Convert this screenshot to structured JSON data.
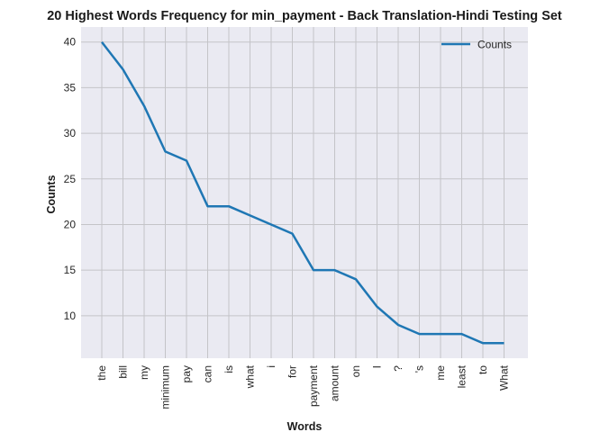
{
  "chart_data": {
    "type": "line",
    "title": "20 Highest Words Frequency for min_payment - Back Translation-Hindi Testing Set",
    "xlabel": "Words",
    "ylabel": "Counts",
    "categories": [
      "the",
      "bill",
      "my",
      "minimum",
      "pay",
      "can",
      "is",
      "what",
      "i",
      "for",
      "payment",
      "amount",
      "on",
      "I",
      "?",
      "'s",
      "me",
      "least",
      "to",
      "What"
    ],
    "series": [
      {
        "name": "Counts",
        "values": [
          40,
          37,
          33,
          28,
          27,
          22,
          22,
          21,
          20,
          19,
          15,
          15,
          14,
          11,
          9,
          8,
          8,
          8,
          7,
          7
        ],
        "color": "#1f77b4"
      }
    ],
    "ylim": [
      5.35,
      41.65
    ],
    "yticks": [
      10,
      15,
      20,
      25,
      30,
      35,
      40
    ],
    "grid": true,
    "legend": "top-right",
    "background": "#eaeaf2",
    "gridColor": "#c4c4c8"
  }
}
